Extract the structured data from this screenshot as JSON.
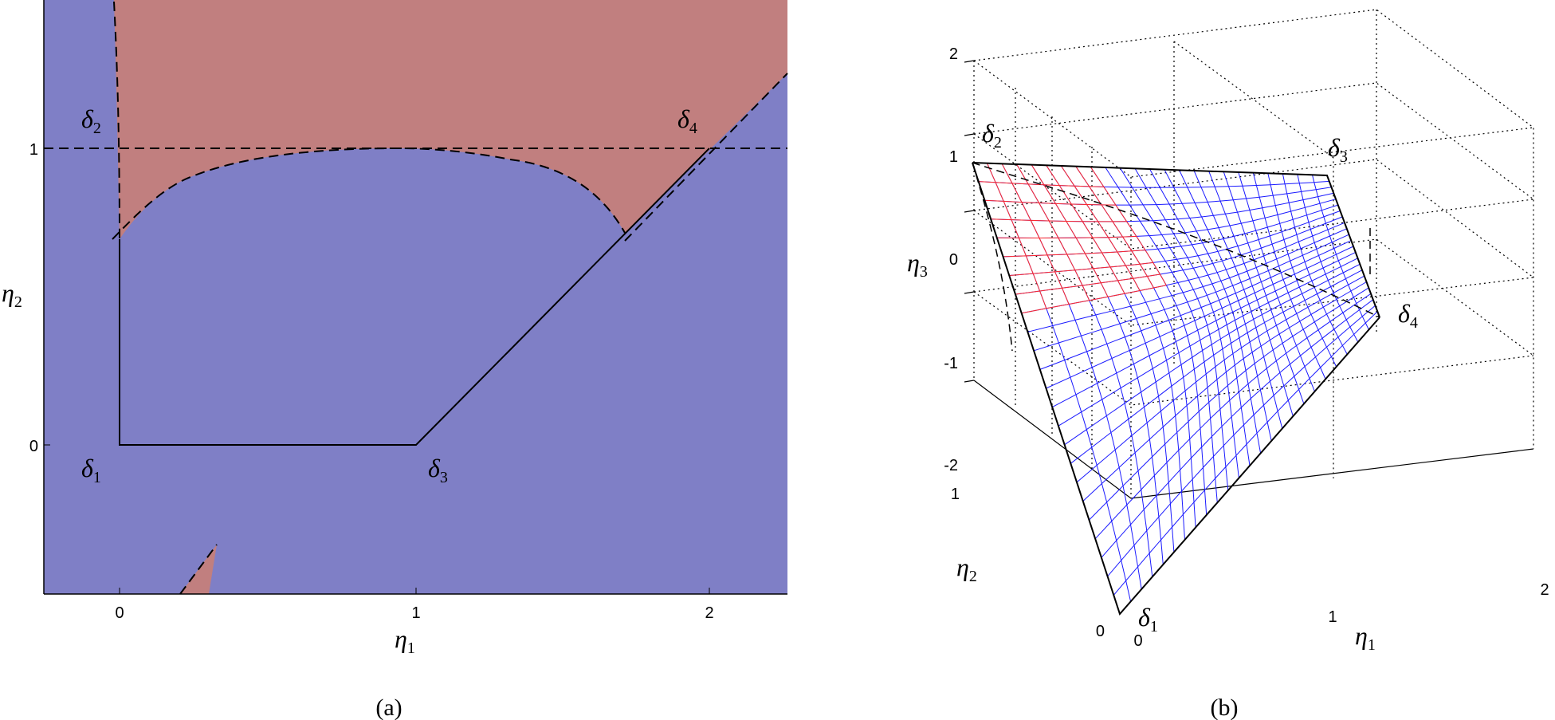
{
  "panel_a": {
    "caption": "(a)",
    "x_axis_symbol": "η",
    "x_axis_sub": "1",
    "y_axis_symbol": "η",
    "y_axis_sub": "2",
    "x_ticks": [
      "0",
      "1",
      "2"
    ],
    "y_ticks": [
      "0",
      "1"
    ],
    "vertices": [
      {
        "sym": "δ",
        "sub": "1"
      },
      {
        "sym": "δ",
        "sub": "2"
      },
      {
        "sym": "δ",
        "sub": "3"
      },
      {
        "sym": "δ",
        "sub": "4"
      }
    ],
    "colors": {
      "blue_region": "#7f7fc6",
      "red_region": "#c17f7f",
      "outline": "#000000"
    }
  },
  "panel_b": {
    "caption": "(b)",
    "x_axis_symbol": "η",
    "x_axis_sub": "1",
    "y_axis_symbol": "η",
    "y_axis_sub": "2",
    "z_axis_symbol": "η",
    "z_axis_sub": "3",
    "x_ticks": [
      "0",
      "1",
      "2"
    ],
    "y_ticks": [
      "0",
      "1"
    ],
    "z_ticks": [
      "2",
      "1",
      "0",
      "-1",
      "-2"
    ],
    "vertices": [
      {
        "sym": "δ",
        "sub": "1"
      },
      {
        "sym": "δ",
        "sub": "2"
      },
      {
        "sym": "δ",
        "sub": "3"
      },
      {
        "sym": "δ",
        "sub": "4"
      }
    ],
    "colors": {
      "blue_mesh": "#0000ff",
      "red_mesh": "#ff0000",
      "grid": "#000000"
    }
  }
}
